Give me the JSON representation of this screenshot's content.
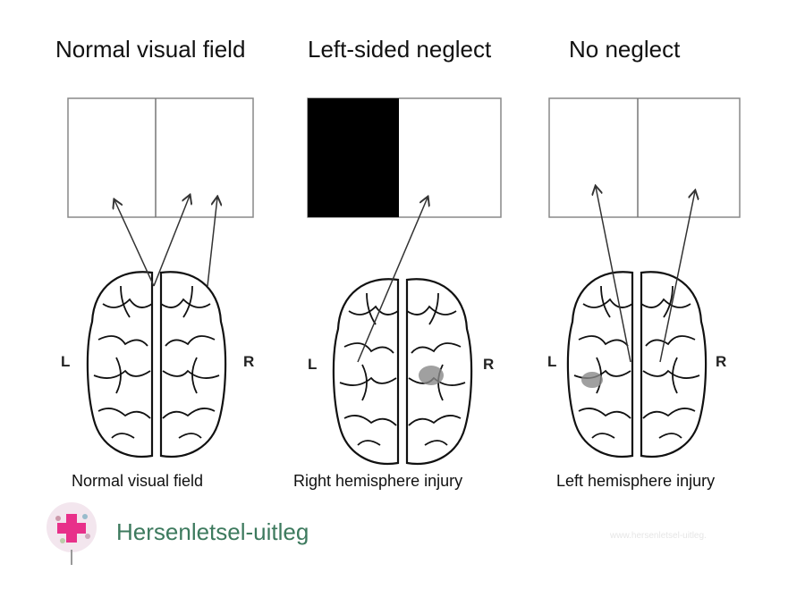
{
  "titles": [
    "Normal visual field",
    "Left-sided neglect",
    "No neglect"
  ],
  "captions": [
    "Normal visual field",
    "Right hemisphere injury",
    "Left hemisphere injury"
  ],
  "side_labels": {
    "left": "L",
    "right": "R"
  },
  "logo": {
    "text": "Hersenletsel-uitleg",
    "accent": "#e8308a",
    "text_color": "#3d7a5e"
  },
  "watermark": "www.hersenletsel-uitleg.",
  "colors": {
    "neglect_field": "#000000",
    "lesion": "#888888"
  }
}
